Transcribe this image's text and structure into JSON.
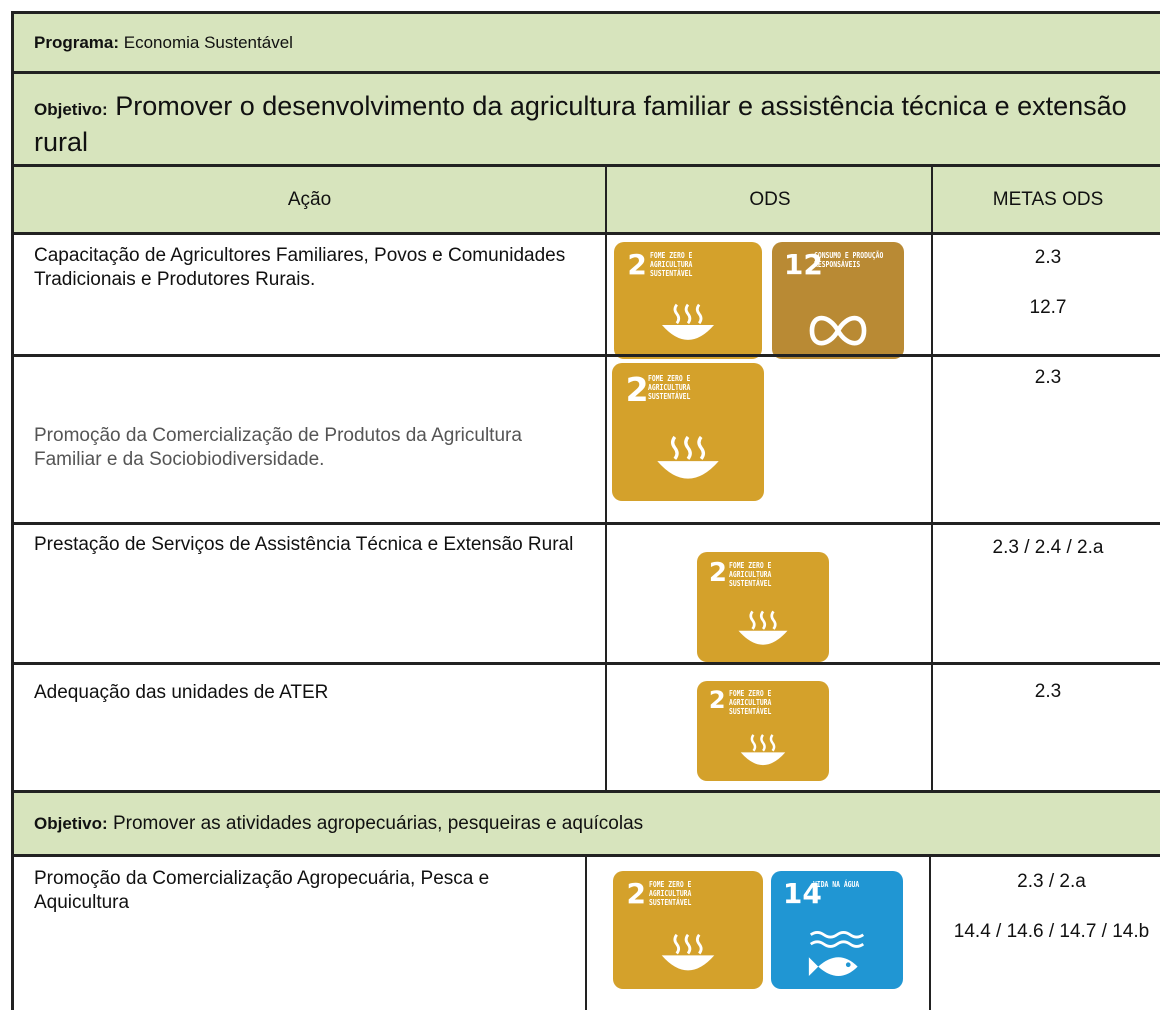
{
  "programa": {
    "label": "Programa:",
    "value": "Economia Sustentável"
  },
  "header": [
    "Ação",
    "ODS",
    "METAS ODS"
  ],
  "sections": [
    {
      "objetivo": {
        "label": "Objetivo:",
        "value": "Promover o desenvolvimento da agricultura familiar e assistência técnica e extensão rural"
      },
      "rows": [
        {
          "acao": "Capacitação de Agricultores Familiares, Povos e Comunidades Tradicionais e Produtores Rurais.",
          "ods": [
            {
              "number": "2",
              "text": "FOME ZERO E AGRICULTURA SUSTENTÁVEL",
              "color": "#d4a12b"
            },
            {
              "number": "12",
              "text": "CONSUMO E PRODUÇÃO RESPONSÁVEIS",
              "color": "#b98a34"
            }
          ],
          "metas": [
            "2.3",
            "12.7"
          ]
        },
        {
          "acao": "Promoção da Comercialização de Produtos da Agricultura Familiar e da Sociobiodiversidade.",
          "ods": [
            {
              "number": "2",
              "text": "FOME ZERO E AGRICULTURA SUSTENTÁVEL",
              "color": "#d4a12b"
            }
          ],
          "metas": [
            "2.3"
          ]
        },
        {
          "acao": "Prestação de Serviços de Assistência Técnica e Extensão Rural",
          "ods": [
            {
              "number": "2",
              "text": "FOME ZERO E AGRICULTURA SUSTENTÁVEL",
              "color": "#d4a12b"
            }
          ],
          "metas": [
            "2.3 / 2.4 / 2.a"
          ]
        },
        {
          "acao": "Adequação das unidades de ATER",
          "ods": [
            {
              "number": "2",
              "text": "FOME ZERO E AGRICULTURA SUSTENTÁVEL",
              "color": "#d4a12b"
            }
          ],
          "metas": [
            "2.3"
          ]
        }
      ]
    },
    {
      "objetivo": {
        "label": "Objetivo:",
        "value": "Promover as atividades agropecuárias, pesqueiras e aquícolas"
      },
      "rows": [
        {
          "acao": "Promoção da Comercialização Agropecuária, Pesca e Aquicultura",
          "ods": [
            {
              "number": "2",
              "text": "FOME ZERO E AGRICULTURA SUSTENTÁVEL",
              "color": "#d4a12b"
            },
            {
              "number": "14",
              "text": "VIDA NA ÁGUA",
              "color": "#2096d3"
            }
          ],
          "metas": [
            "2.3 / 2.a",
            "14.4 / 14.6 / 14.7 / 14.b"
          ]
        }
      ]
    }
  ]
}
